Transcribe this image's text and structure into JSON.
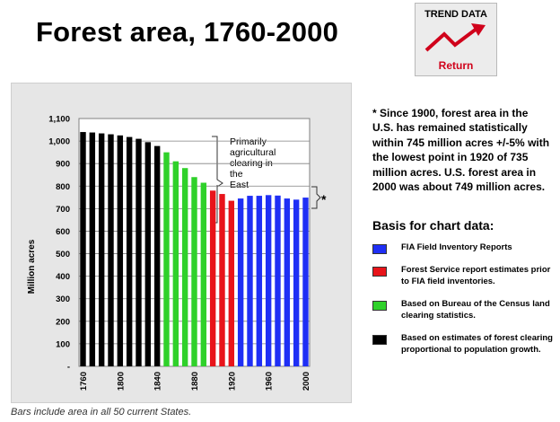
{
  "page": {
    "title": "Forest area, 1760-2000",
    "caption": "Bars include area in all 50 current States."
  },
  "trend_button": {
    "label": "TREND DATA",
    "return_label": "Return",
    "arrow_color": "#d0021b"
  },
  "note": {
    "text": "* Since 1900, forest area in the U.S. has remained statistically within 745 million acres +/-5% with the lowest point in 1920 of 735 million acres.  U.S. forest area in 2000 was about 749 million acres."
  },
  "legend": {
    "title": "Basis for chart data:",
    "items": [
      {
        "label": "FIA Field Inventory Reports",
        "color": "#1f2ff5"
      },
      {
        "label": "Forest Service report estimates prior to FIA  field inventories.",
        "color": "#e8141a"
      },
      {
        "label": "Based on Bureau of the Census land clearing statistics.",
        "color": "#2fd12a"
      },
      {
        "label": "Based on estimates of forest clearing proportional to population growth.",
        "color": "#000000"
      }
    ]
  },
  "chart_data": {
    "type": "bar",
    "ylabel": "Million acres",
    "ylim": [
      0,
      1100
    ],
    "yticks": [
      "-",
      "100",
      "200",
      "300",
      "400",
      "500",
      "600",
      "700",
      "800",
      "900",
      "1,000",
      "1,100"
    ],
    "xtick_labels": [
      "1760",
      "1800",
      "1840",
      "1880",
      "1920",
      "1960",
      "2000"
    ],
    "categories": [
      1760,
      1770,
      1780,
      1790,
      1800,
      1810,
      1820,
      1830,
      1840,
      1850,
      1860,
      1870,
      1880,
      1890,
      1900,
      1910,
      1920,
      1930,
      1940,
      1950,
      1960,
      1970,
      1980,
      1990,
      2000
    ],
    "values": [
      1040,
      1038,
      1034,
      1030,
      1025,
      1018,
      1010,
      995,
      978,
      950,
      910,
      880,
      840,
      815,
      780,
      765,
      735,
      745,
      757,
      757,
      760,
      758,
      745,
      740,
      749
    ],
    "colors": [
      "#000000",
      "#000000",
      "#000000",
      "#000000",
      "#000000",
      "#000000",
      "#000000",
      "#000000",
      "#000000",
      "#2fd12a",
      "#2fd12a",
      "#2fd12a",
      "#2fd12a",
      "#2fd12a",
      "#e8141a",
      "#e8141a",
      "#e8141a",
      "#1f2ff5",
      "#1f2ff5",
      "#1f2ff5",
      "#1f2ff5",
      "#1f2ff5",
      "#1f2ff5",
      "#1f2ff5",
      "#1f2ff5"
    ],
    "grid": true,
    "annotations": {
      "agri": "Primarily agricultural clearing in the East",
      "star": "*"
    }
  }
}
